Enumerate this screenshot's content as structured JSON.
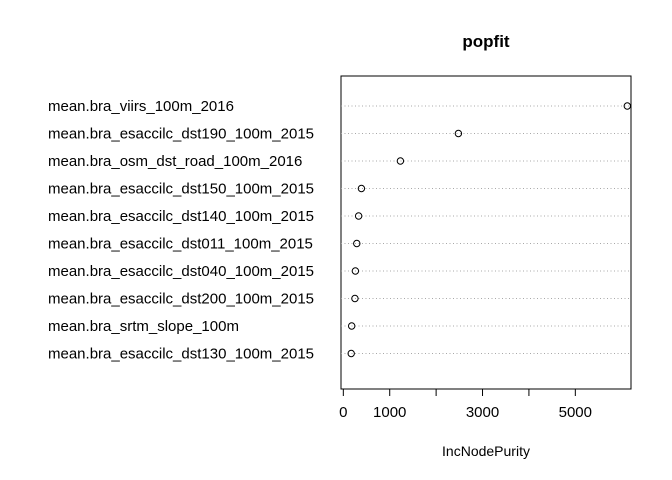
{
  "chart_data": {
    "type": "scatter",
    "title": "popfit",
    "xlabel": "IncNodePurity",
    "ylabel": "",
    "xlim": [
      -50,
      6200
    ],
    "xticks": [
      0,
      1000,
      3000,
      5000
    ],
    "xtick_labels": [
      "0",
      "1000",
      "3000",
      "5000"
    ],
    "grid": "dotted horizontal lines per variable",
    "variables": [
      "mean.bra_viirs_100m_2016",
      "mean.bra_esaccilc_dst190_100m_2015",
      "mean.bra_osm_dst_road_100m_2016",
      "mean.bra_esaccilc_dst150_100m_2015",
      "mean.bra_esaccilc_dst140_100m_2015",
      "mean.bra_esaccilc_dst011_100m_2015",
      "mean.bra_esaccilc_dst040_100m_2015",
      "mean.bra_esaccilc_dst200_100m_2015",
      "mean.bra_srtm_slope_100m",
      "mean.bra_esaccilc_dst130_100m_2015"
    ],
    "values": [
      6120,
      2480,
      1230,
      390,
      330,
      290,
      260,
      250,
      180,
      170
    ]
  }
}
